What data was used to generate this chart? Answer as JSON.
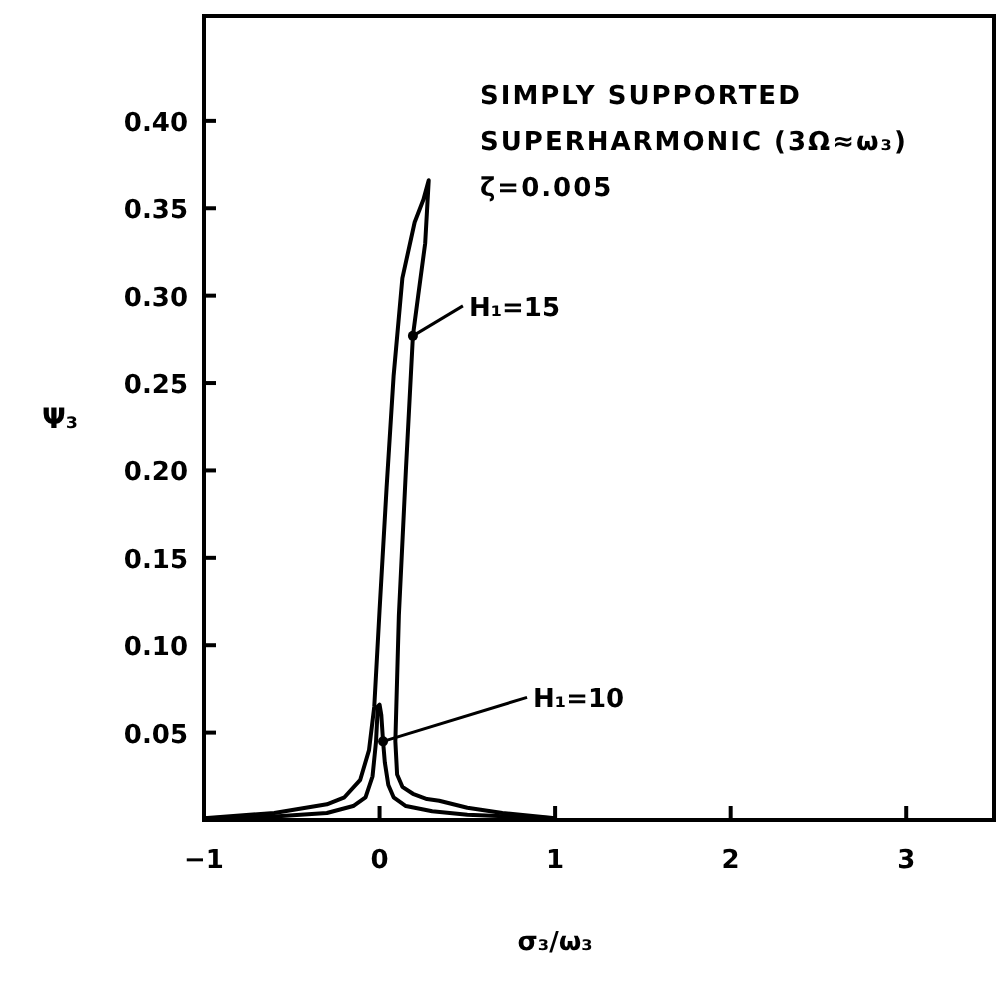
{
  "chart_data": {
    "type": "line",
    "xlabel": "σ₃/ω₃",
    "ylabel": "Ψ₃",
    "xlim": [
      -1,
      3.5
    ],
    "ylim": [
      0,
      0.46
    ],
    "xticks": [
      -1,
      0,
      1,
      2,
      3
    ],
    "yticks": [
      0.05,
      {
        "value": 0.1,
        "label": "0.10"
      },
      0.15,
      {
        "value": 0.2,
        "label": "0.20"
      },
      0.25,
      {
        "value": 0.3,
        "label": "0.30"
      },
      0.35,
      {
        "value": 0.4,
        "label": "0.40"
      }
    ],
    "grid": false,
    "marker": "none",
    "line_style": "solid",
    "series": [
      {
        "color": "#000000",
        "x": [
          -1,
          -0.6,
          -0.3,
          -0.2,
          -0.11,
          -0.06,
          -0.03,
          0.0,
          0.04,
          0.08,
          0.13,
          0.2,
          0.25,
          0.28,
          0.26,
          0.22,
          0.19,
          0.15,
          0.11,
          0.09,
          0.1,
          0.13,
          0.19,
          0.27,
          0.34,
          0.5,
          0.7,
          1.0
        ],
        "values": [
          0.001,
          0.004,
          0.009,
          0.013,
          0.023,
          0.04,
          0.065,
          0.12,
          0.19,
          0.254,
          0.31,
          0.342,
          0.355,
          0.366,
          0.33,
          0.3,
          0.277,
          0.2,
          0.117,
          0.045,
          0.026,
          0.019,
          0.015,
          0.012,
          0.011,
          0.007,
          0.004,
          0.001
        ]
      },
      {
        "color": "#000000",
        "x": [
          -1,
          -0.6,
          -0.3,
          -0.15,
          -0.08,
          -0.04,
          -0.02,
          -0.01,
          0.0,
          0.01,
          0.02,
          0.03,
          0.05,
          0.08,
          0.15,
          0.3,
          0.5,
          1.0
        ],
        "values": [
          0.001,
          0.002,
          0.004,
          0.008,
          0.013,
          0.025,
          0.045,
          0.065,
          0.066,
          0.06,
          0.045,
          0.033,
          0.02,
          0.013,
          0.008,
          0.005,
          0.003,
          0.001
        ]
      }
    ],
    "annotations": [
      "SIMPLY SUPPORTED",
      "SUPERHARMONIC (3Ω≈ω₃)",
      "ζ=0.005",
      {
        "text": "H₁=15",
        "x": 0.19,
        "y": 0.277
      },
      {
        "text": "H₁=10",
        "x": 0.02,
        "y": 0.045
      }
    ]
  }
}
